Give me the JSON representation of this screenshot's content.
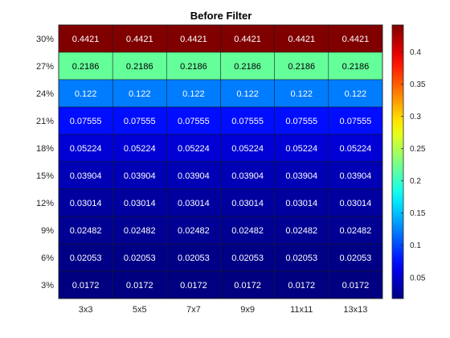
{
  "chart_data": {
    "type": "heatmap",
    "title": "Before Filter",
    "xlabel": "",
    "ylabel": "",
    "x_categories": [
      "3x3",
      "5x5",
      "7x7",
      "9x9",
      "11x11",
      "13x13"
    ],
    "y_categories": [
      "30%",
      "27%",
      "24%",
      "21%",
      "18%",
      "15%",
      "12%",
      "9%",
      "6%",
      "3%"
    ],
    "cell_labels": [
      [
        "0.4421",
        "0.4421",
        "0.4421",
        "0.4421",
        "0.4421",
        "0.4421"
      ],
      [
        "0.2186",
        "0.2186",
        "0.2186",
        "0.2186",
        "0.2186",
        "0.2186"
      ],
      [
        "0.122",
        "0.122",
        "0.122",
        "0.122",
        "0.122",
        "0.122"
      ],
      [
        "0.07555",
        "0.07555",
        "0.07555",
        "0.07555",
        "0.07555",
        "0.07555"
      ],
      [
        "0.05224",
        "0.05224",
        "0.05224",
        "0.05224",
        "0.05224",
        "0.05224"
      ],
      [
        "0.03904",
        "0.03904",
        "0.03904",
        "0.03904",
        "0.03904",
        "0.03904"
      ],
      [
        "0.03014",
        "0.03014",
        "0.03014",
        "0.03014",
        "0.03014",
        "0.03014"
      ],
      [
        "0.02482",
        "0.02482",
        "0.02482",
        "0.02482",
        "0.02482",
        "0.02482"
      ],
      [
        "0.02053",
        "0.02053",
        "0.02053",
        "0.02053",
        "0.02053",
        "0.02053"
      ],
      [
        "0.0172",
        "0.0172",
        "0.0172",
        "0.0172",
        "0.0172",
        "0.0172"
      ]
    ],
    "colormap": "jet",
    "clim": [
      0.0172,
      0.4421
    ],
    "colorbar": {
      "position": "right",
      "ticks": [
        0.05,
        0.1,
        0.15,
        0.2,
        0.25,
        0.3,
        0.35,
        0.4
      ],
      "tick_labels": [
        "0.05",
        "0.1",
        "0.15",
        "0.2",
        "0.25",
        "0.3",
        "0.35",
        "0.4"
      ]
    },
    "grid": false
  }
}
